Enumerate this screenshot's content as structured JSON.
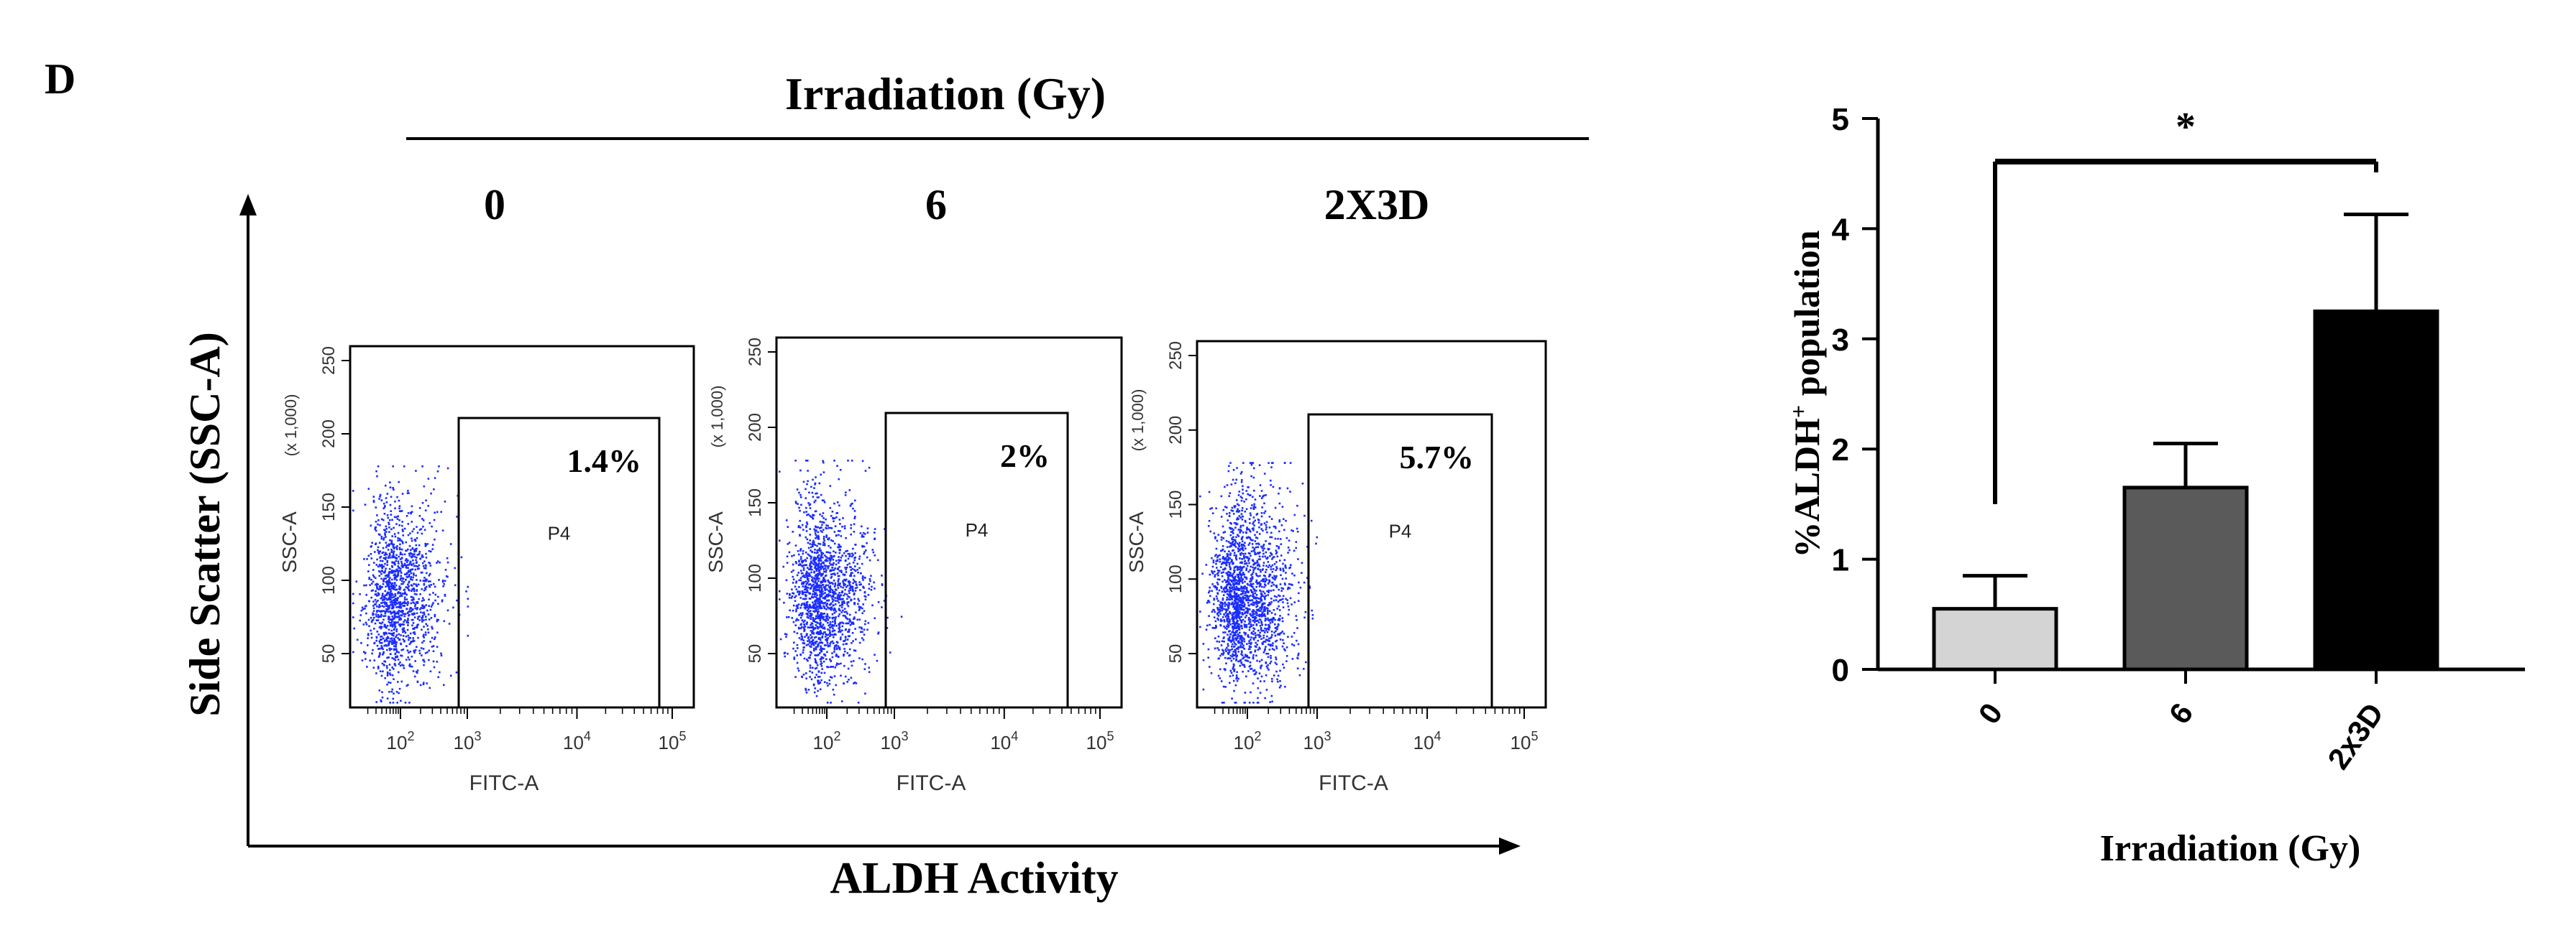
{
  "panel_label": "D",
  "flow": {
    "header": "Irradiation (Gy)",
    "y_label": "Side Scatter (SSC-A)",
    "x_label": "ALDH Activity",
    "plot_xlabel": "FITC-A",
    "plot_ylabel": "SSC-A",
    "plot_ylabel_unit": "(x 1,000)",
    "gate_name": "P4",
    "y_ticks": [
      "50",
      "100",
      "150",
      "200",
      "250"
    ],
    "x_ticks": [
      {
        "base": "10",
        "exp": "2"
      },
      {
        "base": "10",
        "exp": "3"
      },
      {
        "base": "10",
        "exp": "4"
      },
      {
        "base": "10",
        "exp": "5"
      }
    ],
    "plots": [
      {
        "condition": "0",
        "gate_percent": "1.4%"
      },
      {
        "condition": "6",
        "gate_percent": "2%"
      },
      {
        "condition": "2X3D",
        "gate_percent": "5.7%"
      }
    ],
    "dot_color": "#1a2cff"
  },
  "chart_data": {
    "type": "bar",
    "categories": [
      "0",
      "6",
      "2x3D"
    ],
    "values": [
      0.55,
      1.65,
      3.25
    ],
    "errors": [
      0.3,
      0.4,
      0.88
    ],
    "colors": [
      "#d4d4d4",
      "#5a5a5a",
      "#000000"
    ],
    "ylabel_prefix": "%ALDH",
    "ylabel_sup": "+",
    "ylabel_suffix": " population",
    "xlabel": "Irradiation (Gy)",
    "ylim": [
      0,
      5
    ],
    "y_ticks": [
      0,
      1,
      2,
      3,
      4,
      5
    ],
    "significance": {
      "from": 0,
      "to": 2,
      "label": "*"
    }
  }
}
